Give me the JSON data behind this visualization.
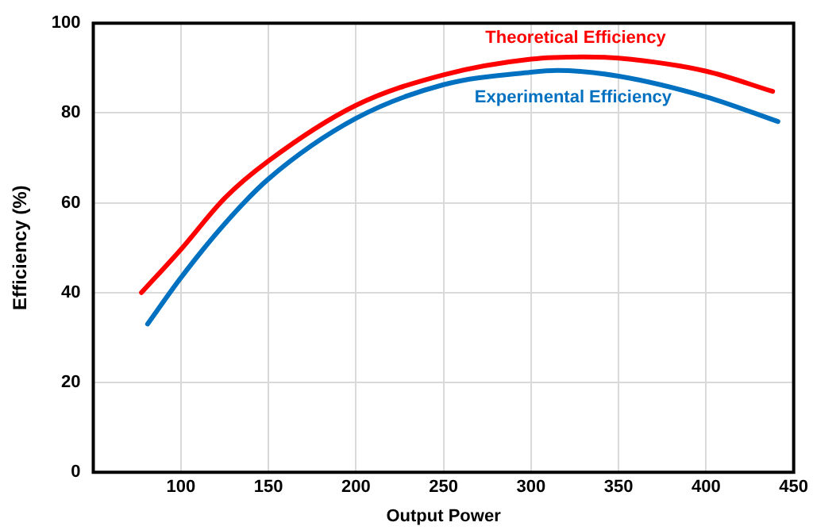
{
  "chart_data": {
    "type": "line",
    "xlabel": "Output Power",
    "ylabel": "Efficiency (%)",
    "xlim": [
      50,
      450
    ],
    "xticks": [
      100,
      150,
      200,
      250,
      300,
      350,
      400,
      450
    ],
    "ylim": [
      0,
      100
    ],
    "yticks": [
      0,
      20,
      40,
      60,
      80,
      100
    ],
    "grid": true,
    "legend": false,
    "marker": "none",
    "line_style": "solid",
    "series": [
      {
        "name": "Theoretical Efficiency",
        "color": "#ff0000",
        "x": [
          77.5,
          100,
          125,
          150,
          200,
          250,
          300,
          330,
          350,
          400,
          438
        ],
        "values": [
          40,
          49.6,
          61,
          69.3,
          81.7,
          88.5,
          92,
          92.5,
          92.2,
          89.3,
          84.8
        ]
      },
      {
        "name": "Experimental Efficiency",
        "color": "#0070c0",
        "x": [
          81,
          100,
          125,
          150,
          200,
          250,
          300,
          315,
          350,
          400,
          441
        ],
        "values": [
          33,
          43.3,
          55.3,
          65.3,
          78.8,
          86.3,
          89.1,
          89.5,
          88.2,
          83.6,
          78.1
        ]
      }
    ]
  }
}
